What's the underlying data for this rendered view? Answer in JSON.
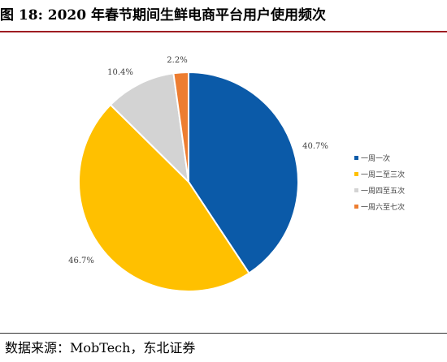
{
  "figure": {
    "title": "图 18: 2020 年春节期间生鲜电商平台用户使用频次",
    "source": "数据来源：MobTech，东北证券"
  },
  "chart_data": {
    "type": "pie",
    "categories": [
      "一周一次",
      "一周二至三次",
      "一周四至五次",
      "一周六至七次"
    ],
    "values": [
      40.7,
      46.7,
      10.4,
      2.2
    ],
    "value_labels": [
      "40.7%",
      "46.7%",
      "10.4%",
      "2.2%"
    ],
    "colors": [
      "#0b5aa8",
      "#ffc000",
      "#d3d3d3",
      "#ed7d31"
    ],
    "start_angle_deg": 0,
    "direction": "clockwise",
    "legend_position": "right",
    "title": "",
    "xlabel": "",
    "ylabel": ""
  }
}
